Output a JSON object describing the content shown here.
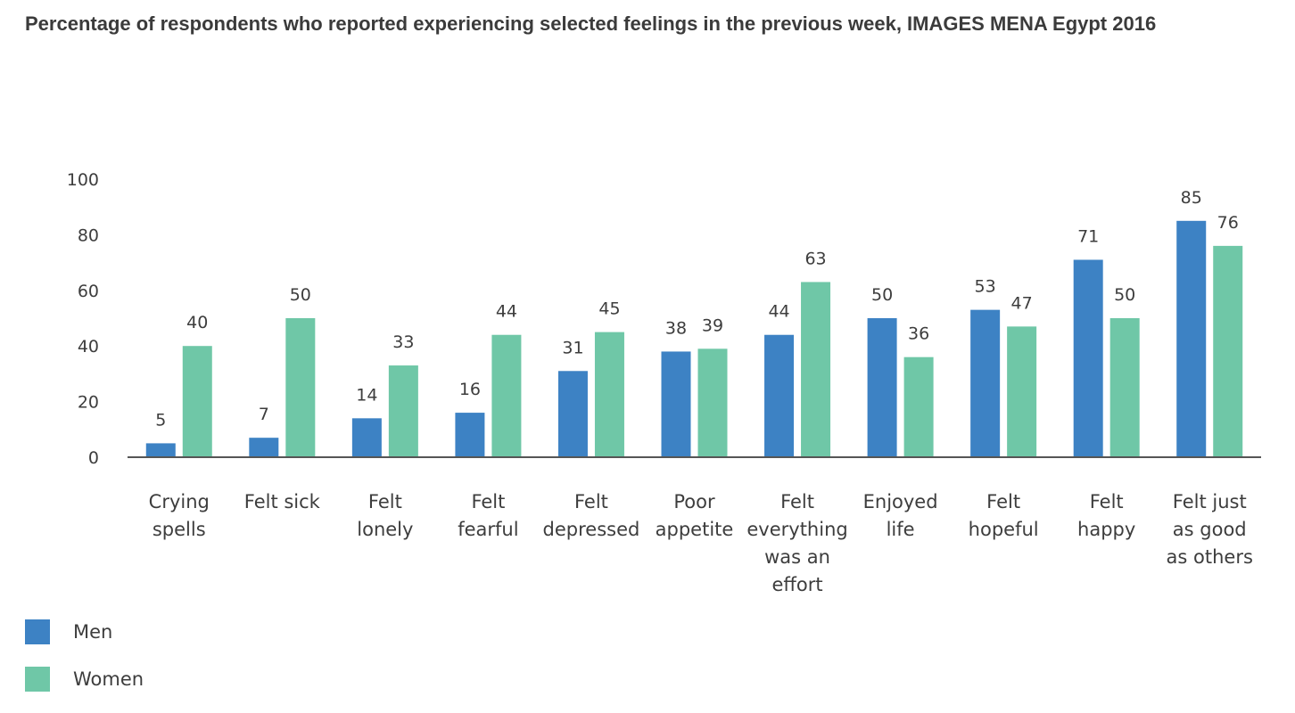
{
  "chart_data": {
    "type": "bar",
    "title": "Percentage of respondents who reported experiencing selected feelings in the previous week, IMAGES MENA Egypt 2016",
    "categories": [
      [
        "Crying",
        "spells"
      ],
      [
        "Felt sick"
      ],
      [
        "Felt",
        "lonely"
      ],
      [
        "Felt",
        "fearful"
      ],
      [
        "Felt",
        "depressed"
      ],
      [
        "Poor",
        "appetite"
      ],
      [
        "Felt",
        "everything",
        "was an",
        "effort"
      ],
      [
        "Enjoyed",
        "life"
      ],
      [
        "Felt",
        "hopeful"
      ],
      [
        "Felt",
        "happy"
      ],
      [
        "Felt just",
        "as good",
        "as others"
      ]
    ],
    "series": [
      {
        "name": "Men",
        "color": "#3d82c4",
        "values": [
          5,
          7,
          14,
          16,
          31,
          38,
          44,
          50,
          53,
          71,
          85
        ]
      },
      {
        "name": "Women",
        "color": "#6fc7a7",
        "values": [
          40,
          50,
          33,
          44,
          45,
          39,
          63,
          36,
          47,
          50,
          76
        ]
      }
    ],
    "ylim": [
      0,
      100
    ],
    "yticks": [
      0,
      20,
      40,
      60,
      80,
      100
    ],
    "xlabel": "",
    "ylabel": "",
    "grid": false,
    "legend_position": "bottom-left"
  }
}
